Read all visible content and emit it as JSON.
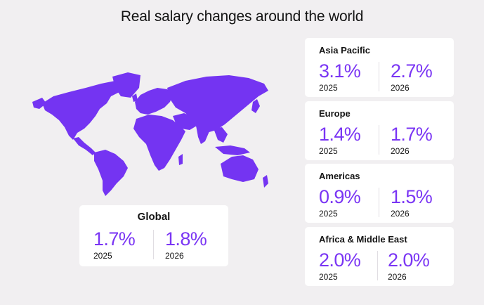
{
  "title": "Real salary changes around the world",
  "colors": {
    "accent": "#7a35f4",
    "map": "#7434f2",
    "background": "#f1eff1",
    "card": "#ffffff"
  },
  "chart_data": {
    "type": "table",
    "title": "Real salary changes around the world",
    "columns": [
      "2025",
      "2026"
    ],
    "rows": [
      {
        "region": "Asia Pacific",
        "y2025": "3.1%",
        "y2026": "2.7%"
      },
      {
        "region": "Europe",
        "y2025": "1.4%",
        "y2026": "1.7%"
      },
      {
        "region": "Americas",
        "y2025": "0.9%",
        "y2026": "1.5%"
      },
      {
        "region": "Africa & Middle East",
        "y2025": "2.0%",
        "y2026": "2.0%"
      },
      {
        "region": "Global",
        "y2025": "1.7%",
        "y2026": "1.8%"
      }
    ]
  },
  "regions": [
    {
      "name": "Asia Pacific",
      "v2025": "3.1%",
      "y2025": "2025",
      "v2026": "2.7%",
      "y2026": "2026"
    },
    {
      "name": "Europe",
      "v2025": "1.4%",
      "y2025": "2025",
      "v2026": "1.7%",
      "y2026": "2026"
    },
    {
      "name": "Americas",
      "v2025": "0.9%",
      "y2025": "2025",
      "v2026": "1.5%",
      "y2026": "2026"
    },
    {
      "name": "Africa & Middle East",
      "v2025": "2.0%",
      "y2025": "2025",
      "v2026": "2.0%",
      "y2026": "2026"
    }
  ],
  "global": {
    "name": "Global",
    "v2025": "1.7%",
    "y2025": "2025",
    "v2026": "1.8%",
    "y2026": "2026"
  }
}
